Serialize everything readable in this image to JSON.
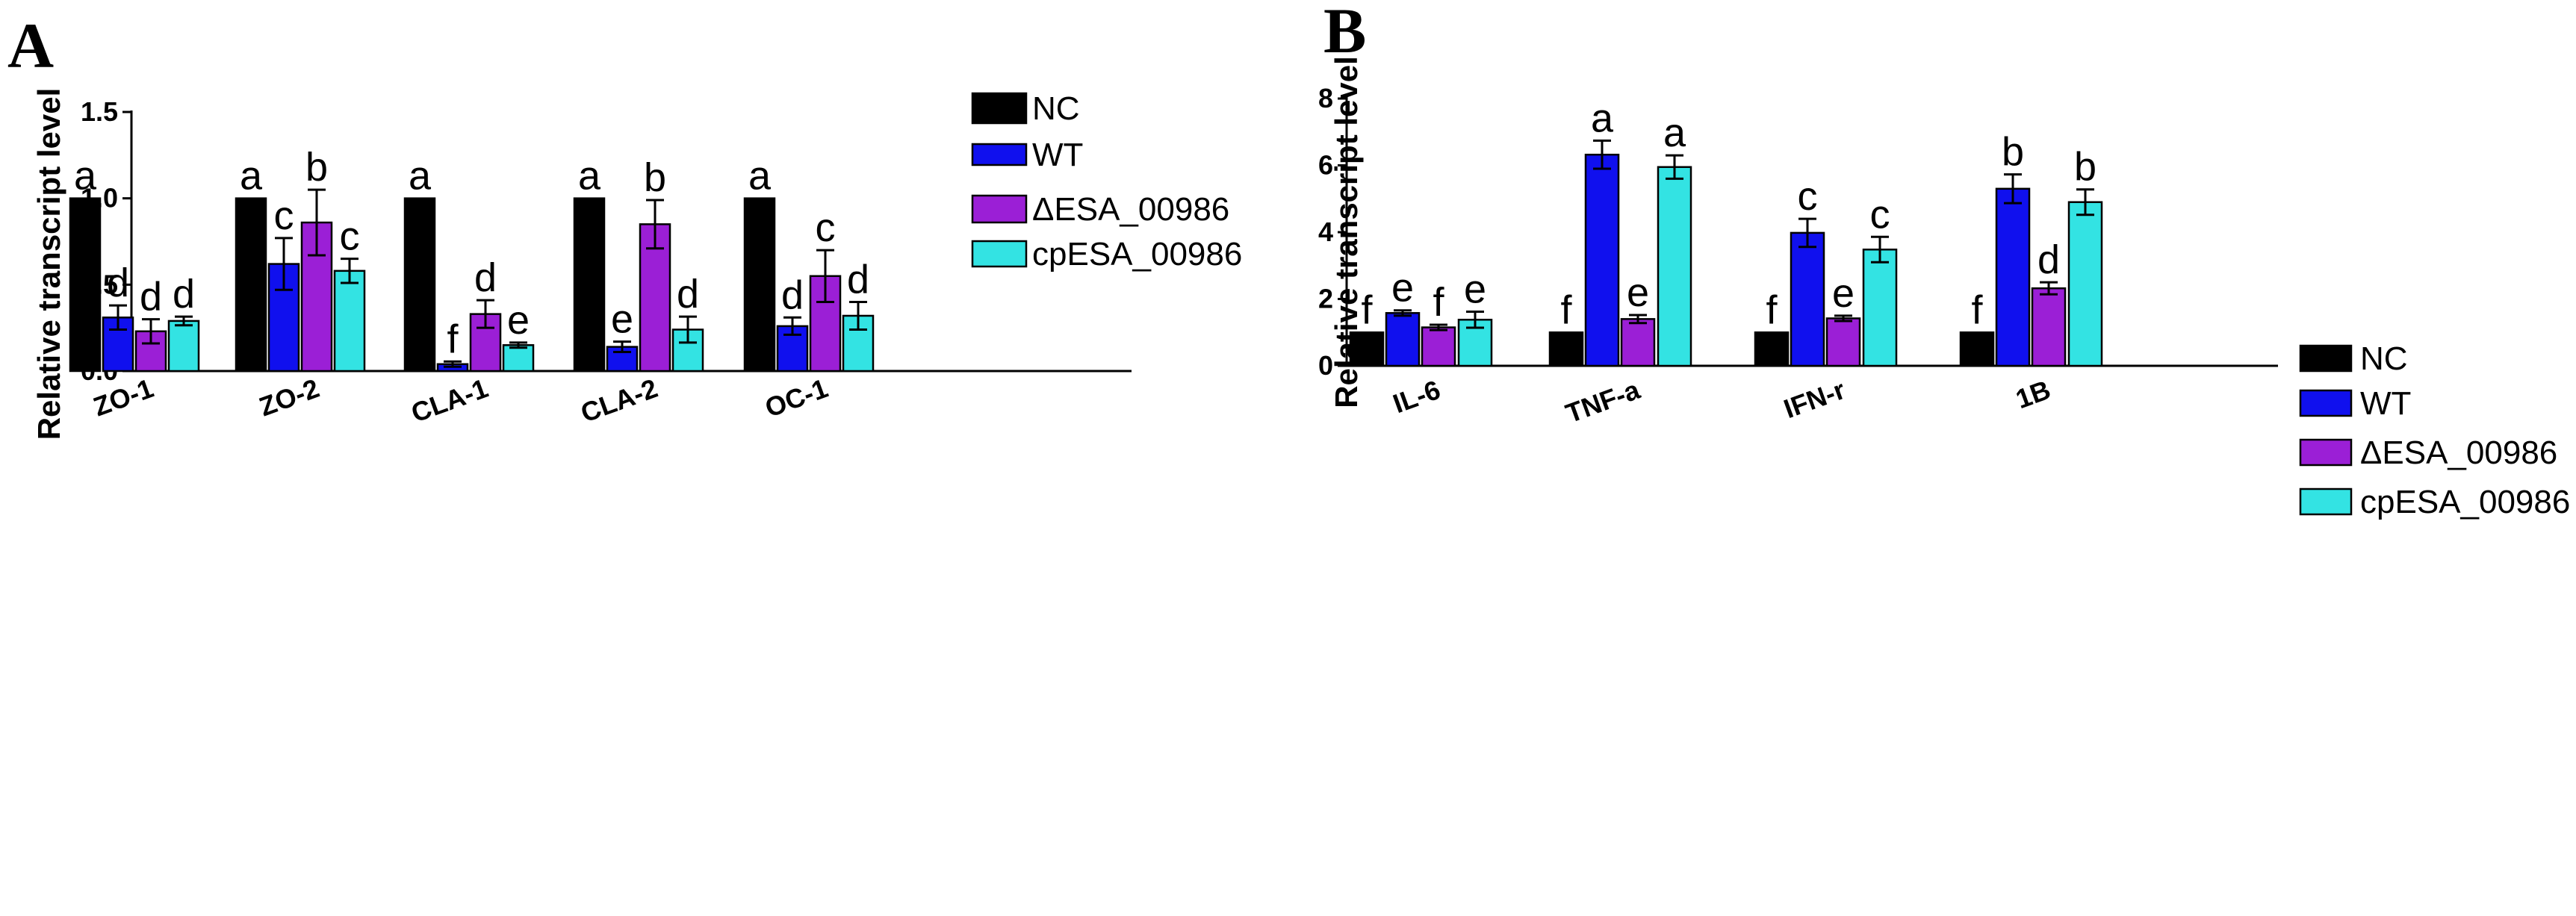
{
  "colors": {
    "NC": "#000000",
    "WT": "#1010ee",
    "dESA": "#9b1fd6",
    "cpESA": "#33e3e3",
    "axis": "#000000"
  },
  "chart_data": [
    {
      "panel": "A",
      "type": "bar",
      "title": "",
      "xlabel": "",
      "ylabel": "Relative transcript level",
      "ylim": [
        0,
        1.5
      ],
      "yticks": [
        "0.0",
        "0.5",
        "1.0",
        "1.5"
      ],
      "legend_position": "top-right",
      "categories": [
        "ZO-1",
        "ZO-2",
        "CLA-1",
        "CLA-2",
        "OC-1"
      ],
      "series": [
        {
          "name": "NC",
          "color_key": "NC",
          "values": [
            1.0,
            1.0,
            1.0,
            1.0,
            1.0
          ],
          "errors": [
            0,
            0,
            0,
            0,
            0
          ],
          "letters": [
            "a",
            "a",
            "a",
            "a",
            "a"
          ]
        },
        {
          "name": "WT",
          "color_key": "WT",
          "values": [
            0.31,
            0.62,
            0.04,
            0.14,
            0.26
          ],
          "errors": [
            0.07,
            0.15,
            0.015,
            0.03,
            0.05
          ],
          "letters": [
            "d",
            "c",
            "f",
            "e",
            "d"
          ]
        },
        {
          "name": "ΔESA_00986",
          "color_key": "dESA",
          "values": [
            0.23,
            0.86,
            0.33,
            0.85,
            0.55
          ],
          "errors": [
            0.07,
            0.19,
            0.08,
            0.14,
            0.15
          ],
          "letters": [
            "d",
            "b",
            "d",
            "b",
            "c"
          ]
        },
        {
          "name": "cpESA_00986",
          "color_key": "cpESA",
          "values": [
            0.29,
            0.58,
            0.15,
            0.24,
            0.32
          ],
          "errors": [
            0.025,
            0.07,
            0.015,
            0.075,
            0.08
          ],
          "letters": [
            "d",
            "c",
            "e",
            "d",
            "d"
          ]
        }
      ]
    },
    {
      "panel": "B",
      "type": "bar",
      "title": "",
      "xlabel": "",
      "ylabel": "Relative transcript level",
      "ylim": [
        0,
        8
      ],
      "yticks": [
        "0",
        "2",
        "4",
        "6",
        "8"
      ],
      "legend_position": "right",
      "categories": [
        "IL-6",
        "TNF-a",
        "IFN-r",
        "1B"
      ],
      "series": [
        {
          "name": "NC",
          "color_key": "NC",
          "values": [
            1.0,
            1.0,
            1.0,
            1.0
          ],
          "errors": [
            0,
            0,
            0,
            0
          ],
          "letters": [
            "f",
            "f",
            "f",
            "f"
          ]
        },
        {
          "name": "WT",
          "color_key": "WT",
          "values": [
            1.58,
            6.32,
            3.98,
            5.3
          ],
          "errors": [
            0.08,
            0.42,
            0.42,
            0.43
          ],
          "letters": [
            "e",
            "a",
            "c",
            "b"
          ]
        },
        {
          "name": "ΔESA_00986",
          "color_key": "dESA",
          "values": [
            1.15,
            1.4,
            1.42,
            2.32
          ],
          "errors": [
            0.08,
            0.12,
            0.08,
            0.18
          ],
          "letters": [
            "f",
            "e",
            "e",
            "d"
          ]
        },
        {
          "name": "cpESA_00986",
          "color_key": "cpESA",
          "values": [
            1.38,
            5.95,
            3.48,
            4.9
          ],
          "errors": [
            0.24,
            0.35,
            0.38,
            0.38
          ],
          "letters": [
            "e",
            "a",
            "c",
            "b"
          ]
        }
      ]
    }
  ]
}
